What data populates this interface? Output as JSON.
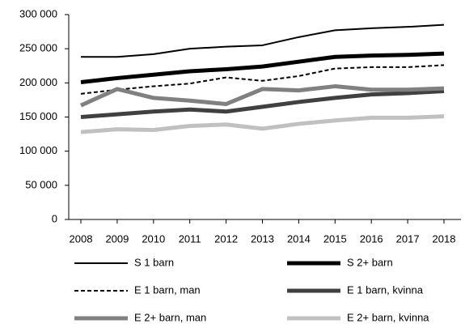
{
  "chart_data": {
    "type": "line",
    "categories": [
      "2008",
      "2009",
      "2010",
      "2011",
      "2012",
      "2013",
      "2014",
      "2015",
      "2016",
      "2017",
      "2018"
    ],
    "series": [
      {
        "name": "S 1 barn",
        "color": "#000000",
        "line_width": 2,
        "dashed": false,
        "values": [
          238000,
          238000,
          242000,
          250000,
          253000,
          255000,
          267000,
          277000,
          280000,
          282000,
          285000
        ]
      },
      {
        "name": "S 2+ barn",
        "color": "#000000",
        "line_width": 5,
        "dashed": false,
        "values": [
          201000,
          207000,
          212000,
          217000,
          220000,
          224000,
          231000,
          238000,
          240000,
          241000,
          243000
        ]
      },
      {
        "name": "E 1 barn, man",
        "color": "#000000",
        "line_width": 2,
        "dashed": true,
        "values": [
          184000,
          190000,
          195000,
          199000,
          208000,
          203000,
          210000,
          221000,
          223000,
          223000,
          226000
        ]
      },
      {
        "name": "E 1 barn, kvinna",
        "color": "#404040",
        "line_width": 5,
        "dashed": false,
        "values": [
          150000,
          154000,
          158000,
          161000,
          158000,
          165000,
          172000,
          178000,
          183000,
          185000,
          188000
        ]
      },
      {
        "name": "E 2+ barn, man",
        "color": "#808080",
        "line_width": 5,
        "dashed": false,
        "values": [
          167000,
          191000,
          178000,
          174000,
          169000,
          191000,
          189000,
          195000,
          190000,
          190000,
          192000
        ]
      },
      {
        "name": "E 2+ barn, kvinna",
        "color": "#c0c0c0",
        "line_width": 5,
        "dashed": false,
        "values": [
          128000,
          132000,
          131000,
          137000,
          139000,
          133000,
          140000,
          145000,
          149000,
          149000,
          151000
        ]
      }
    ],
    "ylim": [
      0,
      300000
    ],
    "yticks": [
      0,
      {
        "value": 50000,
        "label": "50 000"
      },
      {
        "value": 100000,
        "label": "100 000"
      },
      {
        "value": 150000,
        "label": "150 000"
      },
      {
        "value": 200000,
        "label": "200 000"
      },
      {
        "value": 250000,
        "label": "250 000"
      },
      {
        "value": 300000,
        "label": "300 000"
      }
    ],
    "legend": "bottom"
  }
}
